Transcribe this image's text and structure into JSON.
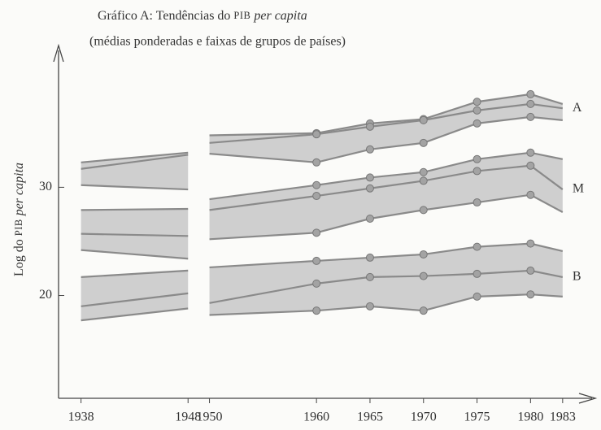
{
  "chart_data": {
    "type": "band",
    "title": [
      "Gráfico A: Tendências do ",
      "PIB",
      " per capita"
    ],
    "subtitle": "(médias ponderadas e faixas de grupos de países)",
    "y_label": [
      "Log do ",
      "PIB",
      " per capita"
    ],
    "x": [
      1938,
      1948,
      null,
      1950,
      1960,
      1965,
      1970,
      1975,
      1980,
      1983
    ],
    "xlim": [
      1935.9,
      1985.9
    ],
    "xticks": [
      1938,
      1948,
      1950,
      1960,
      1965,
      1970,
      1975,
      1980,
      1983
    ],
    "ylim": [
      10.5,
      42.8
    ],
    "yticks": [
      20,
      30
    ],
    "fill_color": "#cfcfcf",
    "line_color": "#8a8a8a",
    "series": [
      {
        "name": "A",
        "upper": [
          32.3,
          33.2,
          null,
          34.8,
          35.0,
          35.9,
          36.3,
          37.9,
          38.6,
          37.7
        ],
        "mean": [
          31.7,
          33.0,
          null,
          34.1,
          34.9,
          35.6,
          36.2,
          37.1,
          37.7,
          37.3
        ],
        "lower": [
          30.2,
          29.8,
          null,
          33.1,
          32.3,
          33.5,
          34.1,
          35.9,
          36.5,
          36.2
        ]
      },
      {
        "name": "M",
        "upper": [
          27.9,
          28.0,
          null,
          28.9,
          30.2,
          30.9,
          31.4,
          32.6,
          33.2,
          32.6
        ],
        "mean": [
          25.7,
          25.5,
          null,
          27.9,
          29.2,
          29.9,
          30.6,
          31.5,
          32.0,
          29.8
        ],
        "lower": [
          24.2,
          23.4,
          null,
          25.2,
          25.8,
          27.1,
          27.9,
          28.6,
          29.3,
          27.7
        ]
      },
      {
        "name": "B",
        "upper": [
          21.7,
          22.3,
          null,
          22.6,
          23.2,
          23.5,
          23.8,
          24.5,
          24.8,
          24.1
        ],
        "mean": [
          19.0,
          20.2,
          null,
          19.3,
          21.1,
          21.7,
          21.8,
          22.0,
          22.3,
          21.7
        ],
        "lower": [
          17.7,
          18.8,
          null,
          18.2,
          18.6,
          19.0,
          18.6,
          19.9,
          20.1,
          19.9
        ]
      }
    ]
  }
}
